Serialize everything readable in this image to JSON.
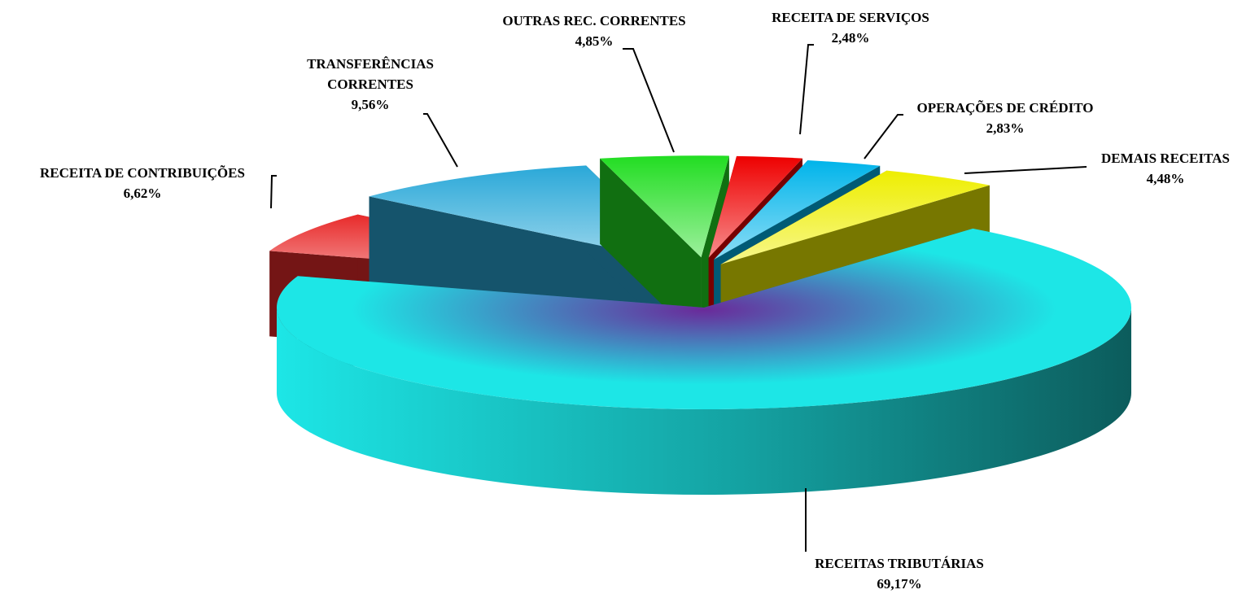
{
  "chart_data": {
    "type": "pie",
    "categories": [
      "RECEITAS TRIBUTÁRIAS",
      "RECEITA DE CONTRIBUIÇÕES",
      "TRANSFERÊNCIAS CORRENTES",
      "OUTRAS REC. CORRENTES",
      "RECEITA DE SERVIÇOS",
      "OPERAÇÕES DE CRÉDITO",
      "DEMAIS RECEITAS"
    ],
    "values": [
      69.17,
      6.62,
      9.56,
      4.85,
      2.48,
      2.83,
      4.48
    ],
    "value_labels": [
      "69,17%",
      "6,62%",
      "9,56%",
      "4,85%",
      "2,48%",
      "2,83%",
      "4,48%"
    ],
    "colors": [
      "#1de6e6",
      "#e82a2a",
      "#2aa8d8",
      "#22dd22",
      "#ee0000",
      "#00b4ea",
      "#eeee00"
    ]
  }
}
